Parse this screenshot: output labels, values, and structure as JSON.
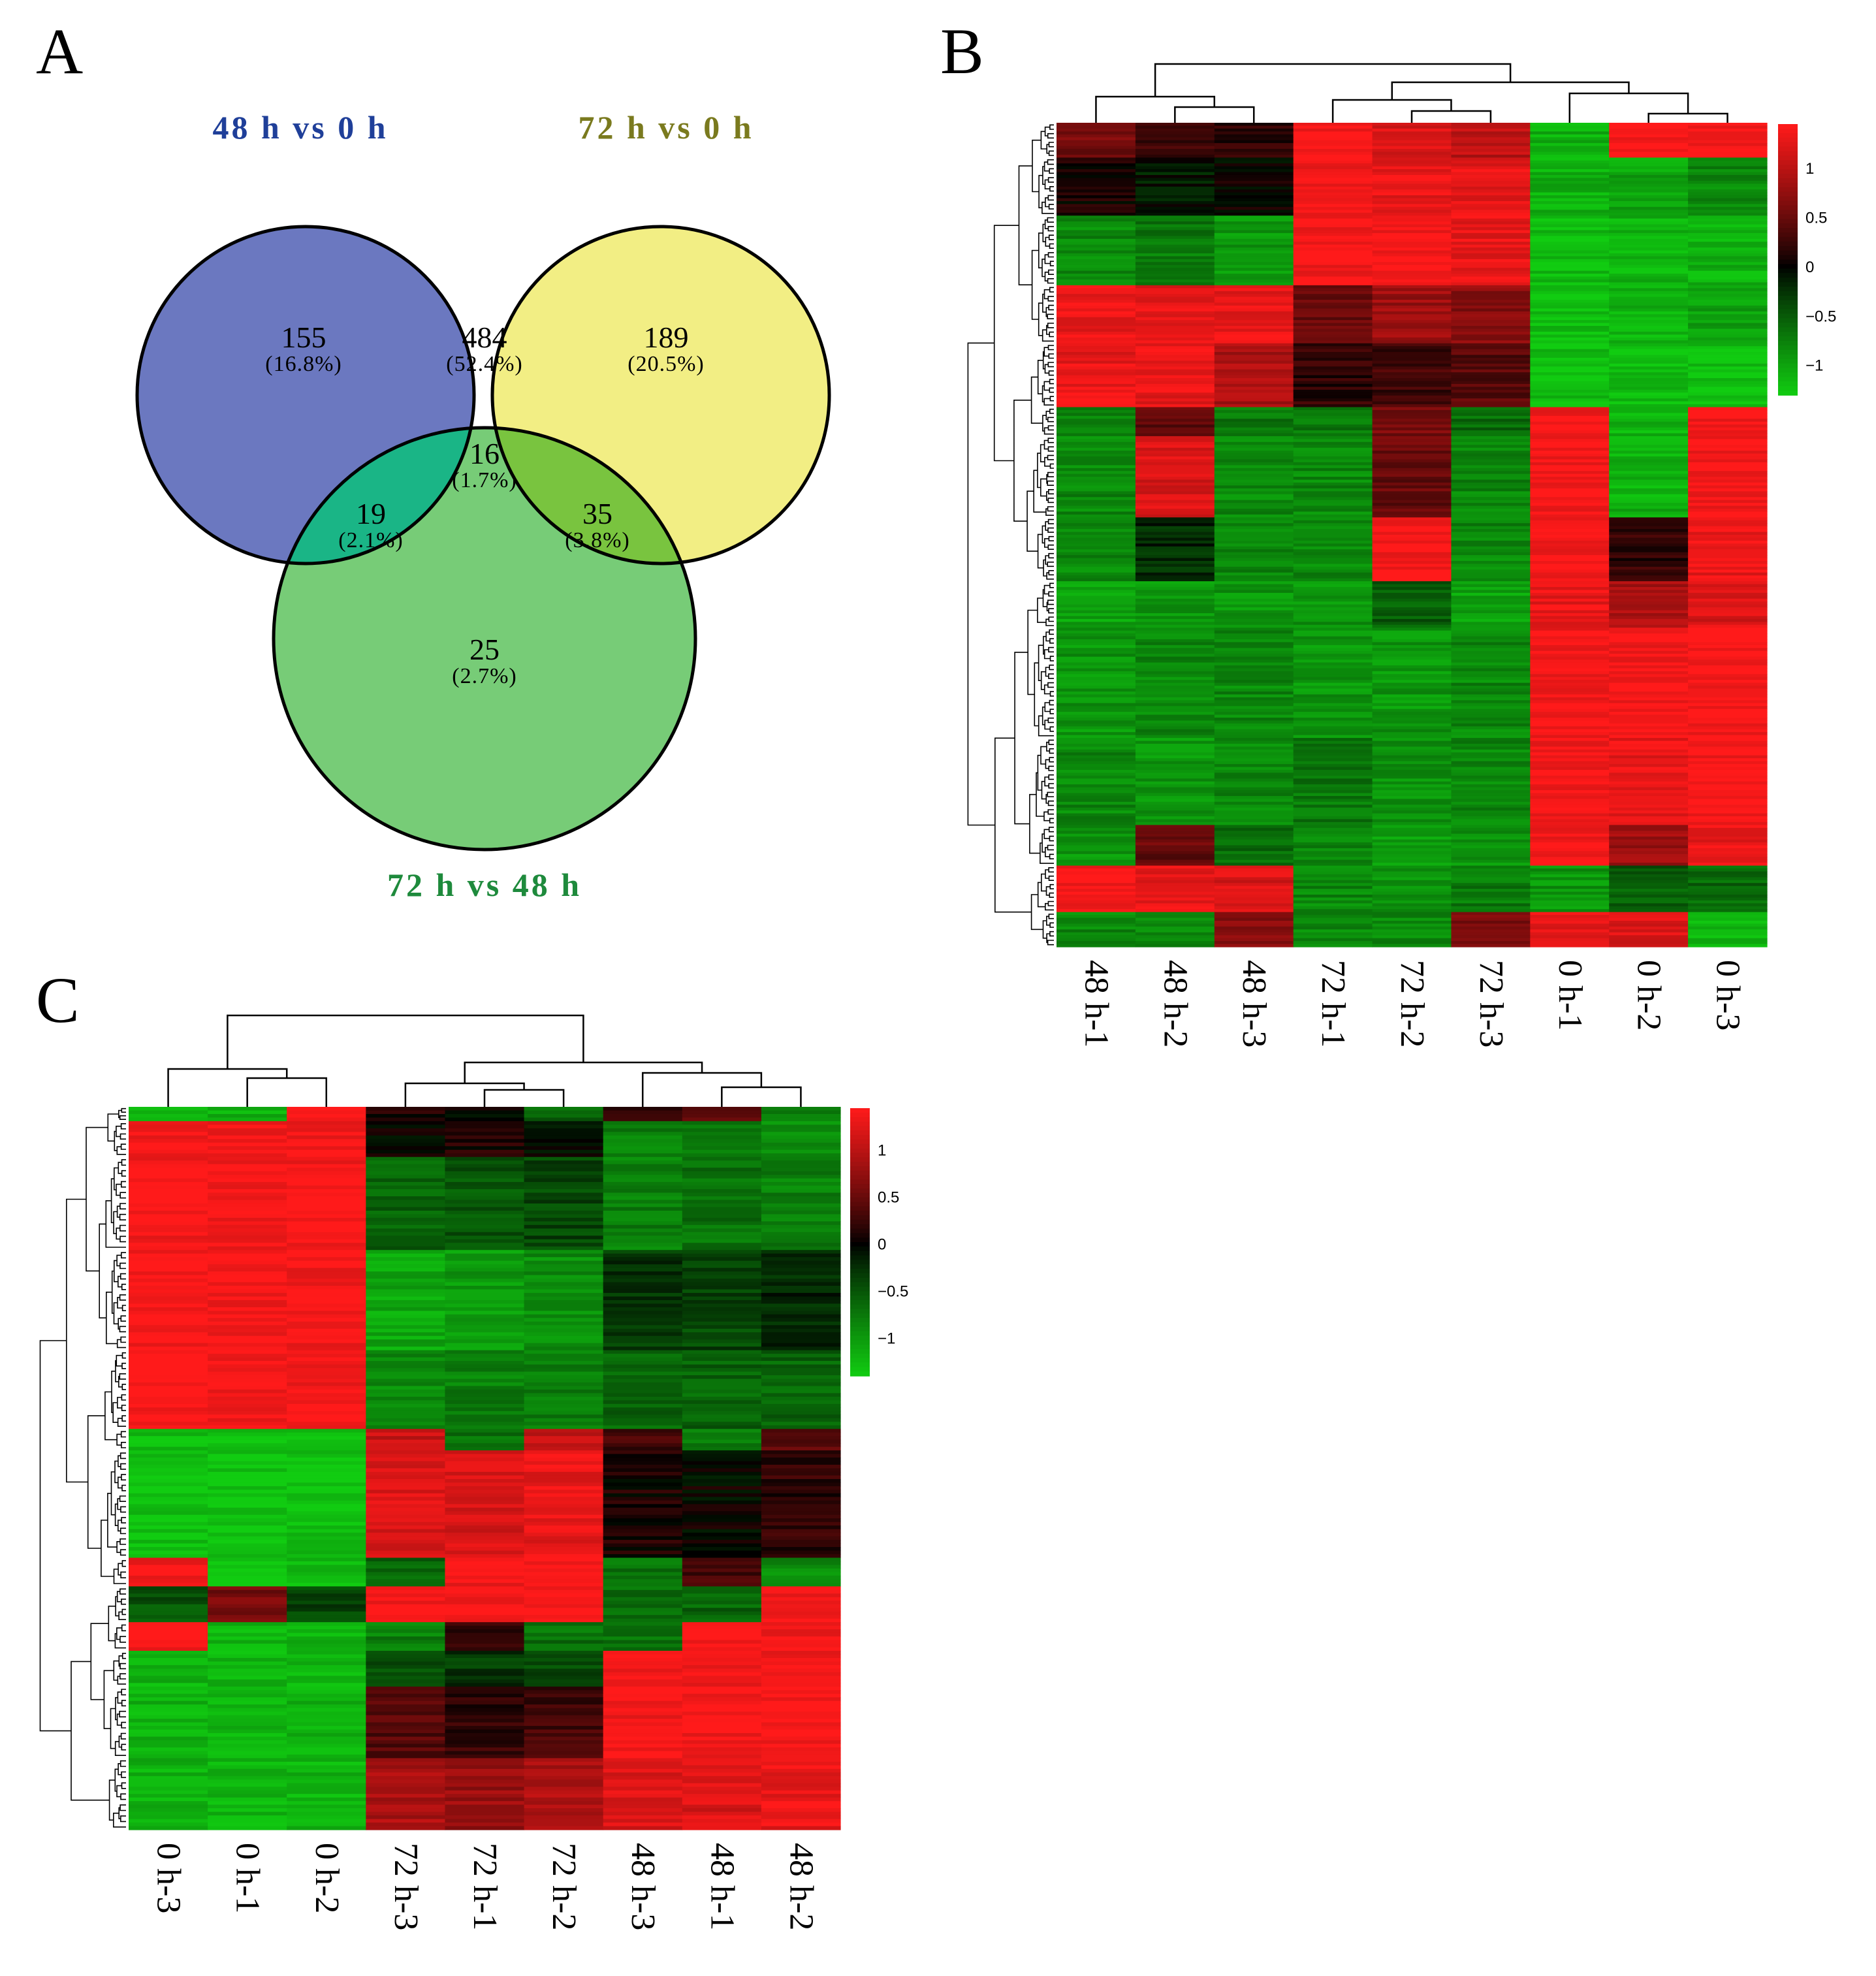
{
  "panels": {
    "A": "A",
    "B": "B",
    "C": "C"
  },
  "colors": {
    "set_48_vs_0": "#6b78c0",
    "set_72_vs_0": "#f2ee84",
    "set_72_vs_48": "#77cc77",
    "title_48_vs_0": "#1f3f99",
    "title_72_vs_0": "#7a7a1e",
    "title_72_vs_48": "#1e8a3c",
    "heat_low": "#11cc11",
    "heat_mid": "#000000",
    "heat_high": "#ff1a1a"
  },
  "chart_data": [
    {
      "type": "venn",
      "panel": "A",
      "sets": [
        {
          "name": "48 h vs 0 h"
        },
        {
          "name": "72 h vs 0 h"
        },
        {
          "name": "72 h vs 48 h"
        }
      ],
      "regions": [
        {
          "sets": [
            "48 h vs 0 h"
          ],
          "count": "155",
          "percent": "(16.8%)"
        },
        {
          "sets": [
            "48 h vs 0 h",
            "72 h vs 0 h"
          ],
          "count": "484",
          "percent": "(52.4%)"
        },
        {
          "sets": [
            "72 h vs 0 h"
          ],
          "count": "189",
          "percent": "(20.5%)"
        },
        {
          "sets": [
            "48 h vs 0 h",
            "72 h vs 0 h",
            "72 h vs 48 h"
          ],
          "count": "16",
          "percent": "(1.7%)"
        },
        {
          "sets": [
            "48 h vs 0 h",
            "72 h vs 48 h"
          ],
          "count": "19",
          "percent": "(2.1%)"
        },
        {
          "sets": [
            "72 h vs 0 h",
            "72 h vs 48 h"
          ],
          "count": "35",
          "percent": "(3.8%)"
        },
        {
          "sets": [
            "72 h vs 48 h"
          ],
          "count": "25",
          "percent": "(2.7%)"
        }
      ]
    },
    {
      "type": "heatmap",
      "panel": "B",
      "columns": [
        "48 h-1",
        "48 h-2",
        "48 h-3",
        "72 h-1",
        "72 h-2",
        "72 h-3",
        "0 h-1",
        "0 h-2",
        "0 h-3"
      ],
      "colorbar_ticks": [
        1,
        0.5,
        0,
        -0.5,
        -1
      ],
      "colorbar_range": [
        -1.3,
        1.45
      ],
      "row_blocks": [
        {
          "rows": 12,
          "values": [
            0.6,
            0.3,
            0.2,
            1.4,
            1.2,
            1.0,
            -1.1,
            1.4,
            1.4
          ]
        },
        {
          "rows": 20,
          "values": [
            0.1,
            -0.1,
            0.0,
            1.4,
            1.3,
            1.3,
            -1.1,
            -1.0,
            -0.8
          ]
        },
        {
          "rows": 24,
          "values": [
            -0.8,
            -0.7,
            -0.9,
            1.4,
            1.4,
            1.3,
            -1.2,
            -1.1,
            -1.1
          ]
        },
        {
          "rows": 20,
          "values": [
            1.3,
            1.3,
            1.3,
            0.5,
            0.8,
            0.7,
            -1.2,
            -1.1,
            -1.0
          ]
        },
        {
          "rows": 22,
          "values": [
            1.3,
            1.3,
            0.9,
            0.2,
            0.3,
            0.4,
            -1.2,
            -1.2,
            -1.2
          ]
        },
        {
          "rows": 10,
          "values": [
            -0.8,
            0.4,
            -0.7,
            -0.7,
            0.6,
            -0.6,
            1.4,
            -1.1,
            1.4
          ]
        },
        {
          "rows": 28,
          "values": [
            -0.8,
            1.2,
            -0.8,
            -0.8,
            0.5,
            -0.8,
            1.4,
            -1.1,
            1.4
          ]
        },
        {
          "rows": 22,
          "values": [
            -0.8,
            -0.2,
            -0.8,
            -0.8,
            1.4,
            -0.8,
            1.4,
            0.2,
            1.3
          ]
        },
        {
          "rows": 16,
          "values": [
            -1.0,
            -0.9,
            -0.9,
            -0.9,
            -0.5,
            -1.0,
            1.3,
            0.9,
            1.2
          ]
        },
        {
          "rows": 38,
          "values": [
            -0.9,
            -0.8,
            -0.8,
            -0.9,
            -0.9,
            -0.8,
            1.4,
            1.4,
            1.4
          ]
        },
        {
          "rows": 30,
          "values": [
            -0.8,
            -0.9,
            -0.8,
            -0.7,
            -0.9,
            -0.8,
            1.4,
            1.3,
            1.4
          ]
        },
        {
          "rows": 14,
          "values": [
            -0.9,
            0.5,
            -0.6,
            -0.8,
            -1.0,
            -0.9,
            1.4,
            0.8,
            1.3
          ]
        },
        {
          "rows": 16,
          "values": [
            1.4,
            1.3,
            1.2,
            -0.8,
            -0.9,
            -0.7,
            -0.9,
            -0.5,
            -0.6
          ]
        },
        {
          "rows": 12,
          "values": [
            -0.8,
            -0.8,
            0.7,
            -0.8,
            -0.8,
            0.6,
            1.3,
            1.2,
            -1.1
          ]
        }
      ]
    },
    {
      "type": "heatmap",
      "panel": "C",
      "columns": [
        "0 h-3",
        "0 h-1",
        "0 h-2",
        "72 h-3",
        "72 h-1",
        "72 h-2",
        "48 h-3",
        "48 h-1",
        "48 h-2"
      ],
      "colorbar_ticks": [
        1,
        0.5,
        0,
        -0.5,
        -1
      ],
      "colorbar_range": [
        -1.4,
        1.45
      ],
      "row_blocks": [
        {
          "rows": 4,
          "values": [
            -1.2,
            -1.2,
            1.4,
            0.1,
            0.0,
            -0.6,
            0.3,
            0.4,
            -0.8
          ]
        },
        {
          "rows": 10,
          "values": [
            1.4,
            1.4,
            1.4,
            0.0,
            0.1,
            -0.1,
            -0.8,
            -0.7,
            -0.9
          ]
        },
        {
          "rows": 26,
          "values": [
            1.4,
            1.4,
            1.4,
            -0.6,
            -0.5,
            -0.4,
            -0.8,
            -0.7,
            -0.8
          ]
        },
        {
          "rows": 28,
          "values": [
            1.4,
            1.4,
            1.4,
            -1.1,
            -1.0,
            -0.9,
            -0.3,
            -0.4,
            -0.2
          ]
        },
        {
          "rows": 22,
          "values": [
            1.4,
            1.4,
            1.4,
            -0.9,
            -0.8,
            -0.8,
            -0.6,
            -0.6,
            -0.6
          ]
        },
        {
          "rows": 6,
          "values": [
            -1.3,
            -1.3,
            -1.3,
            1.1,
            -0.7,
            1.1,
            0.3,
            -0.8,
            0.4
          ]
        },
        {
          "rows": 30,
          "values": [
            -1.3,
            -1.3,
            -1.3,
            1.2,
            1.2,
            1.3,
            0.1,
            0.0,
            0.2
          ]
        },
        {
          "rows": 8,
          "values": [
            1.4,
            -1.3,
            -1.3,
            -0.6,
            1.4,
            1.4,
            -0.7,
            0.3,
            -0.9
          ]
        },
        {
          "rows": 10,
          "values": [
            -0.5,
            0.6,
            -0.4,
            1.4,
            1.4,
            1.4,
            -0.7,
            -0.6,
            1.4
          ]
        },
        {
          "rows": 8,
          "values": [
            1.4,
            -1.2,
            -1.2,
            -0.8,
            0.2,
            -0.7,
            -0.7,
            1.4,
            1.4
          ]
        },
        {
          "rows": 10,
          "values": [
            -1.2,
            -1.2,
            -1.2,
            -0.5,
            -0.3,
            -0.4,
            1.4,
            1.4,
            1.4
          ]
        },
        {
          "rows": 20,
          "values": [
            -1.2,
            -1.2,
            -1.2,
            0.4,
            0.2,
            0.3,
            1.4,
            1.4,
            1.4
          ]
        },
        {
          "rows": 20,
          "values": [
            -1.2,
            -1.2,
            -1.2,
            0.9,
            0.8,
            0.9,
            1.2,
            1.2,
            1.3
          ]
        }
      ]
    }
  ]
}
